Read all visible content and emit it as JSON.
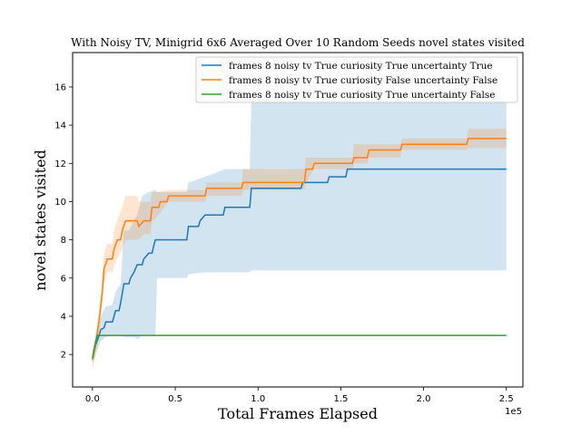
{
  "chart_data": {
    "type": "line",
    "title": "With Noisy TV, Minigrid 6x6 Averaged Over 10 Random Seeds novel states visited",
    "xlabel": "Total Frames Elapsed",
    "ylabel": "novel states visited",
    "x_offset_label": "1e5",
    "xlim": [
      -0.12,
      2.6
    ],
    "ylim": [
      0.3,
      17.8
    ],
    "x_ticks": [
      0.0,
      0.5,
      1.0,
      1.5,
      2.0,
      2.5
    ],
    "x_tick_labels": [
      "0.0",
      "0.5",
      "1.0",
      "1.5",
      "2.0",
      "2.5"
    ],
    "y_ticks": [
      2,
      4,
      6,
      8,
      10,
      12,
      14,
      16
    ],
    "y_tick_labels": [
      "2",
      "4",
      "6",
      "8",
      "10",
      "12",
      "14",
      "16"
    ],
    "grid": false,
    "legend_position": "upper-right",
    "series": [
      {
        "name": "frames 8 noisy tv True curiosity True uncertainty True",
        "color": "#1f77b4",
        "band_color": "#1f77b4",
        "points": [
          [
            0.0,
            1.8
          ],
          [
            0.02,
            2.5
          ],
          [
            0.04,
            3.0
          ],
          [
            0.05,
            3.3
          ],
          [
            0.07,
            3.4
          ],
          [
            0.08,
            3.7
          ],
          [
            0.12,
            3.7
          ],
          [
            0.13,
            4.0
          ],
          [
            0.14,
            4.3
          ],
          [
            0.16,
            4.3
          ],
          [
            0.17,
            4.7
          ],
          [
            0.19,
            5.7
          ],
          [
            0.22,
            5.7
          ],
          [
            0.23,
            6.0
          ],
          [
            0.25,
            6.3
          ],
          [
            0.27,
            6.7
          ],
          [
            0.3,
            6.7
          ],
          [
            0.31,
            7.0
          ],
          [
            0.34,
            7.3
          ],
          [
            0.36,
            7.3
          ],
          [
            0.37,
            7.7
          ],
          [
            0.38,
            8.0
          ],
          [
            0.57,
            8.0
          ],
          [
            0.58,
            8.7
          ],
          [
            0.64,
            8.7
          ],
          [
            0.65,
            9.0
          ],
          [
            0.68,
            9.3
          ],
          [
            0.79,
            9.3
          ],
          [
            0.8,
            9.7
          ],
          [
            0.95,
            9.7
          ],
          [
            0.96,
            10.7
          ],
          [
            1.26,
            10.7
          ],
          [
            1.27,
            11.0
          ],
          [
            1.42,
            11.0
          ],
          [
            1.43,
            11.3
          ],
          [
            1.53,
            11.3
          ],
          [
            1.54,
            11.7
          ],
          [
            2.5,
            11.7
          ]
        ],
        "band": [
          [
            0.0,
            1.5,
            2.1
          ],
          [
            0.02,
            2.0,
            3.0
          ],
          [
            0.05,
            2.7,
            4.0
          ],
          [
            0.08,
            2.9,
            4.5
          ],
          [
            0.12,
            3.0,
            4.6
          ],
          [
            0.14,
            3.0,
            5.3
          ],
          [
            0.17,
            3.0,
            5.7
          ],
          [
            0.19,
            2.9,
            8.5
          ],
          [
            0.22,
            2.9,
            8.5
          ],
          [
            0.25,
            2.9,
            9.0
          ],
          [
            0.27,
            2.8,
            9.3
          ],
          [
            0.3,
            3.0,
            10.3
          ],
          [
            0.34,
            3.0,
            10.5
          ],
          [
            0.38,
            3.0,
            10.6
          ],
          [
            0.39,
            6.0,
            10.5
          ],
          [
            0.57,
            6.0,
            10.5
          ],
          [
            0.58,
            6.2,
            11.0
          ],
          [
            0.68,
            6.3,
            11.3
          ],
          [
            0.8,
            6.3,
            11.7
          ],
          [
            0.95,
            6.3,
            11.7
          ],
          [
            0.96,
            6.4,
            15.3
          ],
          [
            1.26,
            6.4,
            15.3
          ],
          [
            1.27,
            6.4,
            15.3
          ],
          [
            1.43,
            6.4,
            15.3
          ],
          [
            1.54,
            6.4,
            15.3
          ],
          [
            2.5,
            6.4,
            15.3
          ]
        ]
      },
      {
        "name": "frames 8 noisy tv True curiosity False uncertainty False",
        "color": "#ff7f0e",
        "band_color": "#ff7f0e",
        "points": [
          [
            0.0,
            1.7
          ],
          [
            0.02,
            2.6
          ],
          [
            0.04,
            3.8
          ],
          [
            0.06,
            5.3
          ],
          [
            0.07,
            6.5
          ],
          [
            0.09,
            7.0
          ],
          [
            0.12,
            7.0
          ],
          [
            0.13,
            7.5
          ],
          [
            0.15,
            8.0
          ],
          [
            0.17,
            8.0
          ],
          [
            0.18,
            8.5
          ],
          [
            0.2,
            9.0
          ],
          [
            0.27,
            9.0
          ],
          [
            0.28,
            8.7
          ],
          [
            0.31,
            9.0
          ],
          [
            0.35,
            9.0
          ],
          [
            0.36,
            9.7
          ],
          [
            0.4,
            9.7
          ],
          [
            0.41,
            10.0
          ],
          [
            0.45,
            10.0
          ],
          [
            0.46,
            10.3
          ],
          [
            0.68,
            10.3
          ],
          [
            0.69,
            10.7
          ],
          [
            0.9,
            10.7
          ],
          [
            0.91,
            11.0
          ],
          [
            1.28,
            11.0
          ],
          [
            1.29,
            11.7
          ],
          [
            1.33,
            11.7
          ],
          [
            1.34,
            12.0
          ],
          [
            1.57,
            12.0
          ],
          [
            1.58,
            12.3
          ],
          [
            1.66,
            12.3
          ],
          [
            1.67,
            12.7
          ],
          [
            1.86,
            12.7
          ],
          [
            1.87,
            13.0
          ],
          [
            2.26,
            13.0
          ],
          [
            2.27,
            13.3
          ],
          [
            2.5,
            13.3
          ]
        ],
        "band": [
          [
            0.0,
            1.2,
            2.1
          ],
          [
            0.02,
            2.1,
            3.1
          ],
          [
            0.04,
            3.2,
            4.4
          ],
          [
            0.06,
            4.6,
            6.1
          ],
          [
            0.07,
            5.7,
            7.3
          ],
          [
            0.09,
            6.3,
            7.8
          ],
          [
            0.12,
            6.3,
            7.8
          ],
          [
            0.13,
            6.6,
            8.5
          ],
          [
            0.15,
            7.0,
            9.0
          ],
          [
            0.18,
            7.5,
            9.7
          ],
          [
            0.2,
            8.0,
            10.3
          ],
          [
            0.27,
            8.0,
            10.3
          ],
          [
            0.28,
            8.0,
            10.0
          ],
          [
            0.31,
            8.3,
            10.0
          ],
          [
            0.35,
            8.3,
            10.0
          ],
          [
            0.36,
            9.0,
            10.5
          ],
          [
            0.4,
            9.3,
            10.5
          ],
          [
            0.46,
            10.0,
            10.6
          ],
          [
            0.68,
            10.0,
            10.6
          ],
          [
            0.69,
            10.3,
            11.0
          ],
          [
            0.9,
            10.3,
            11.0
          ],
          [
            0.91,
            10.6,
            11.7
          ],
          [
            1.28,
            10.6,
            11.7
          ],
          [
            1.29,
            11.0,
            12.3
          ],
          [
            1.34,
            11.7,
            12.3
          ],
          [
            1.57,
            11.7,
            12.3
          ],
          [
            1.58,
            12.0,
            13.0
          ],
          [
            1.66,
            12.0,
            13.0
          ],
          [
            1.67,
            12.3,
            13.0
          ],
          [
            1.86,
            12.3,
            13.0
          ],
          [
            1.87,
            12.7,
            13.3
          ],
          [
            2.26,
            12.7,
            13.3
          ],
          [
            2.27,
            12.8,
            13.8
          ],
          [
            2.5,
            12.8,
            13.8
          ]
        ]
      },
      {
        "name": "frames 8 noisy tv True curiosity True uncertainty False",
        "color": "#2ca02c",
        "band_color": "#2ca02c",
        "points": [
          [
            0.0,
            1.8
          ],
          [
            0.01,
            2.3
          ],
          [
            0.02,
            2.7
          ],
          [
            0.03,
            3.0
          ],
          [
            2.5,
            3.0
          ]
        ],
        "band": [
          [
            0.0,
            1.8,
            1.8
          ],
          [
            2.5,
            3.0,
            3.0
          ]
        ]
      }
    ]
  }
}
